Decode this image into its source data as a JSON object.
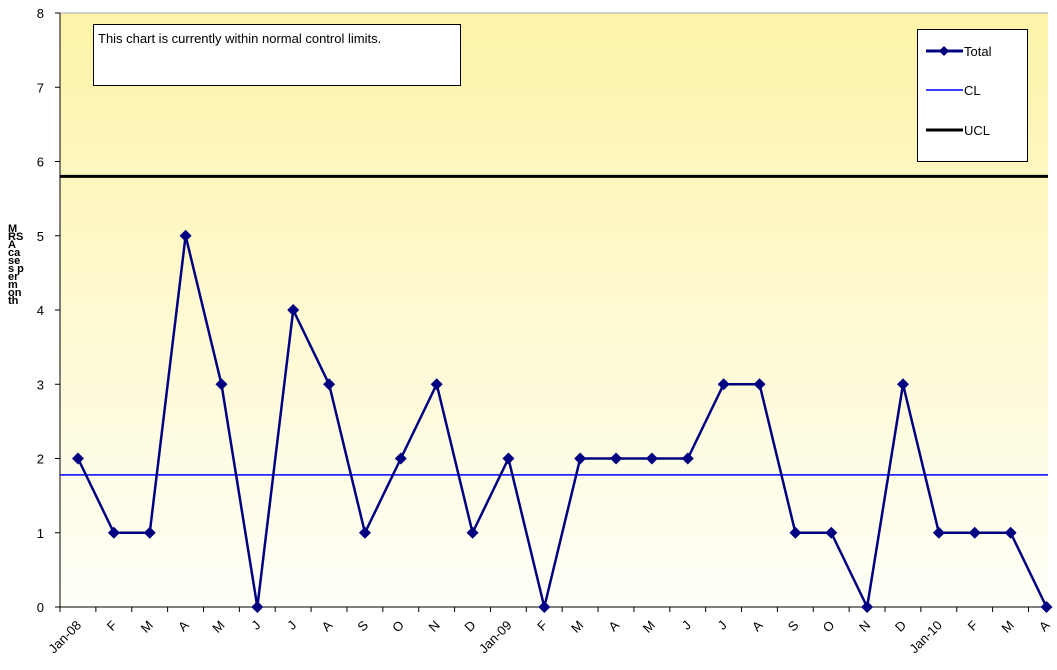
{
  "chart_data": {
    "type": "line",
    "ylabel": "MRSA cases per month",
    "ylim": [
      0,
      8
    ],
    "yticks": [
      "0",
      "1",
      "2",
      "3",
      "4",
      "5",
      "6",
      "7",
      "8"
    ],
    "categories": [
      "Jan-08",
      "F",
      "M",
      "A",
      "M",
      "J",
      "J",
      "A",
      "S",
      "O",
      "N",
      "D",
      "Jan-09",
      "F",
      "M",
      "A",
      "M",
      "J",
      "J",
      "A",
      "S",
      "O",
      "N",
      "D",
      "Jan-10",
      "F",
      "M",
      "A"
    ],
    "series": [
      {
        "name": "Total",
        "color": "#000080",
        "marker": "diamond",
        "values": [
          2,
          1,
          1,
          5,
          3,
          0,
          4,
          3,
          1,
          2,
          3,
          1,
          2,
          0,
          2,
          2,
          2,
          2,
          3,
          3,
          1,
          1,
          0,
          3,
          1,
          1,
          1,
          0
        ]
      },
      {
        "name": "CL",
        "color": "#0000ff",
        "constant": 1.78
      },
      {
        "name": "UCL",
        "color": "#000000",
        "constant": 5.8
      }
    ],
    "annotation": "This chart is currently within normal control limits.",
    "legend_position": "top-right",
    "background": "yellow gradient"
  }
}
